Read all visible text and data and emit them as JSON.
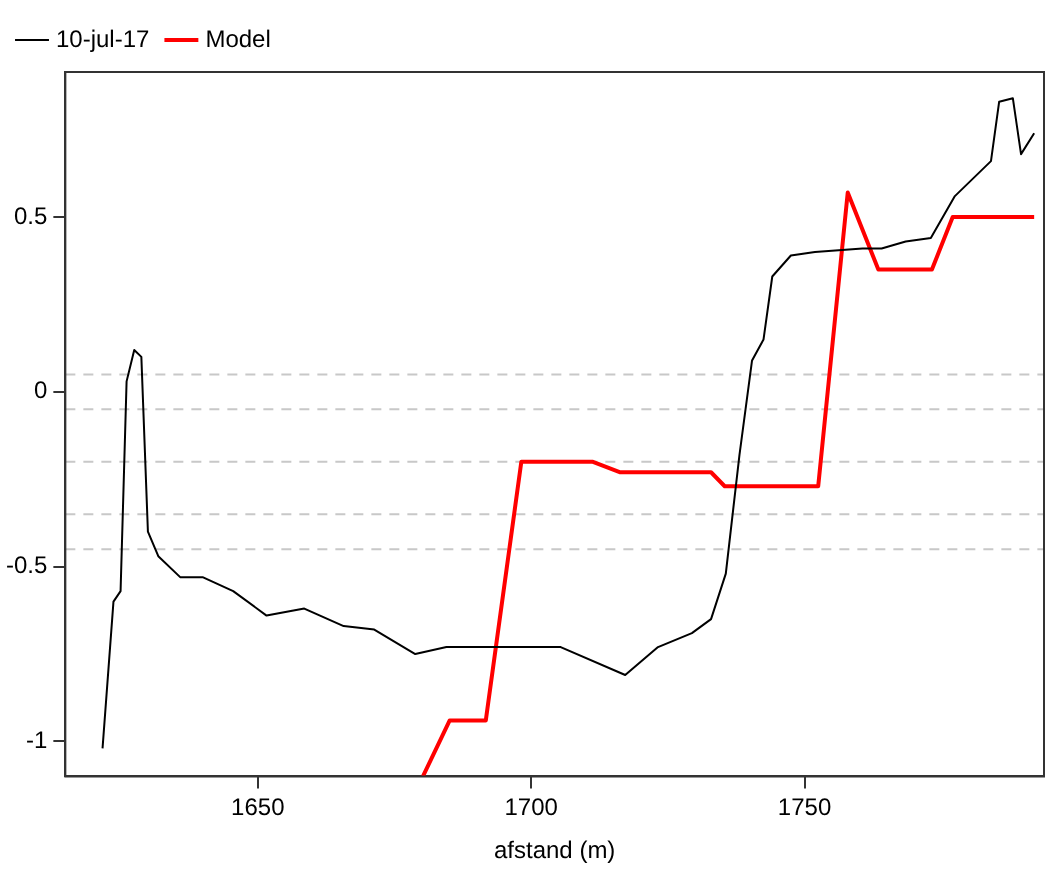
{
  "chart_data": {
    "type": "line",
    "xlabel": "afstand (m)",
    "xlim": [
      1614.8,
      1793.8
    ],
    "xticks": [
      1650,
      1700,
      1750
    ],
    "ylim": [
      -1.1,
      0.915
    ],
    "yticks": [
      -1.0,
      -0.5,
      0.0,
      0.5
    ],
    "grid": false,
    "legend": "top left",
    "marker": "none",
    "line_style": "solid",
    "ref_lines": [
      {
        "axis": "y",
        "value": 0.05,
        "color": "#c8c8c8",
        "line_style": "dashed"
      },
      {
        "axis": "y",
        "value": -0.05,
        "color": "#c8c8c8",
        "line_style": "dashed"
      },
      {
        "axis": "y",
        "value": -0.2,
        "color": "#c8c8c8",
        "line_style": "dashed"
      },
      {
        "axis": "y",
        "value": -0.35,
        "color": "#c8c8c8",
        "line_style": "dashed"
      },
      {
        "axis": "y",
        "value": -0.45,
        "color": "#c8c8c8",
        "line_style": "dashed"
      }
    ],
    "series": [
      {
        "name": "10-jul-17",
        "color": "#000000",
        "x": [
          1621.6,
          1623.6,
          1624.9,
          1626,
          1627.4,
          1628.7,
          1629.9,
          1631.8,
          1635.8,
          1639.9,
          1645.5,
          1651.6,
          1658.5,
          1665.7,
          1671.3,
          1678.8,
          1684.5,
          1690.7,
          1695.7,
          1705.4,
          1717.2,
          1723.2,
          1729.4,
          1732.9,
          1735.6,
          1738.1,
          1740.4,
          1742.5,
          1744.1,
          1747.5,
          1751.9,
          1760.6,
          1764.1,
          1768.5,
          1773.1,
          1777.5,
          1784.1,
          1785.6,
          1788.1,
          1789.6,
          1792
        ],
        "values": [
          -1.02,
          -0.6,
          -0.57,
          0.03,
          0.12,
          0.1,
          -0.4,
          -0.47,
          -0.53,
          -0.53,
          -0.57,
          -0.64,
          -0.62,
          -0.67,
          -0.68,
          -0.75,
          -0.73,
          -0.73,
          -0.73,
          -0.73,
          -0.81,
          -0.73,
          -0.69,
          -0.65,
          -0.52,
          -0.18,
          0.09,
          0.15,
          0.33,
          0.39,
          0.4,
          0.41,
          0.41,
          0.43,
          0.44,
          0.56,
          0.66,
          0.83,
          0.84,
          0.68,
          0.74
        ]
      },
      {
        "name": "Model",
        "color": "#ff0000",
        "x": [
          1680.2,
          1685.1,
          1691.7,
          1698.2,
          1711.3,
          1716.3,
          1732.9,
          1735.4,
          1752.5,
          1757.9,
          1763.5,
          1773.3,
          1777.1,
          1792
        ],
        "values": [
          -1.1,
          -0.94,
          -0.94,
          -0.2,
          -0.2,
          -0.23,
          -0.23,
          -0.27,
          -0.27,
          0.57,
          0.35,
          0.35,
          0.5,
          0.5
        ]
      }
    ]
  }
}
